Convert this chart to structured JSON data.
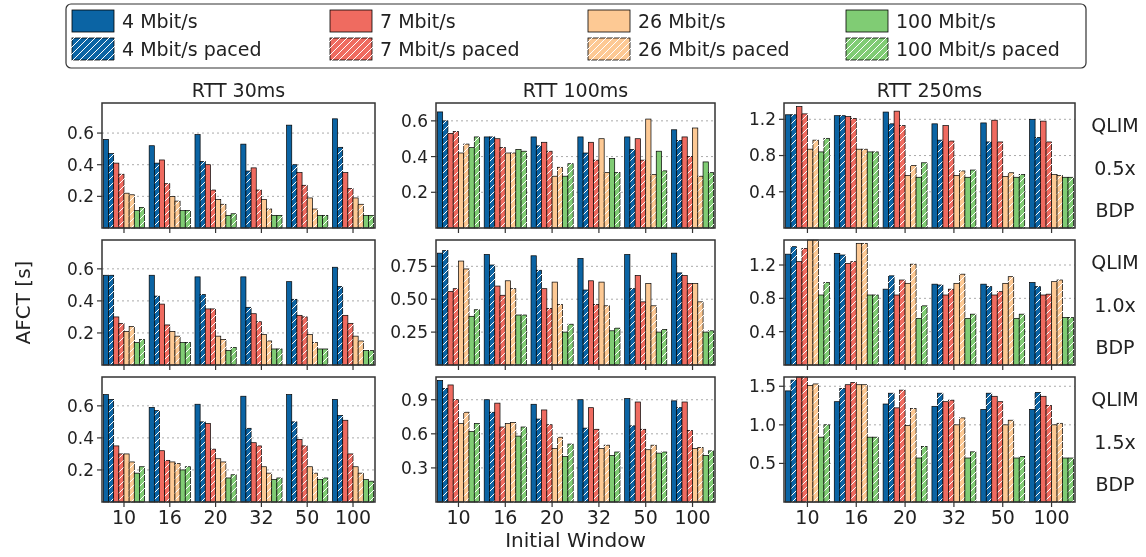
{
  "chart_data": [
    {
      "type": "bar",
      "title": "RTT 30ms",
      "legend": "top",
      "tick_labels": "y",
      "grid": "y",
      "categories": [
        "10",
        "16",
        "20",
        "32",
        "50",
        "100"
      ],
      "ylim": [
        0,
        0.79
      ],
      "yticks": [
        0.2,
        0.4,
        0.6
      ],
      "series": [
        {
          "name": "4 Mbit/s",
          "color": "#0b64a4",
          "values": [
            0.56,
            0.52,
            0.59,
            0.53,
            0.65,
            0.69
          ]
        },
        {
          "name": "4 Mbit/s paced",
          "color": "#0b64a4",
          "values": [
            0.47,
            0.41,
            0.42,
            0.36,
            0.4,
            0.51
          ]
        },
        {
          "name": "7 Mbit/s",
          "color": "#ef6b60",
          "values": [
            0.41,
            0.43,
            0.4,
            0.38,
            0.35,
            0.35
          ]
        },
        {
          "name": "7 Mbit/s paced",
          "color": "#ef6b60",
          "values": [
            0.34,
            0.28,
            0.24,
            0.24,
            0.27,
            0.25
          ]
        },
        {
          "name": "26 Mbit/s",
          "color": "#fdc994",
          "values": [
            0.22,
            0.2,
            0.18,
            0.18,
            0.19,
            0.19
          ]
        },
        {
          "name": "26 Mbit/s paced",
          "color": "#fdc994",
          "values": [
            0.21,
            0.17,
            0.15,
            0.12,
            0.12,
            0.15
          ]
        },
        {
          "name": "100 Mbit/s",
          "color": "#80cc74",
          "values": [
            0.11,
            0.11,
            0.08,
            0.08,
            0.08,
            0.08
          ]
        },
        {
          "name": "100 Mbit/s paced",
          "color": "#80cc74",
          "values": [
            0.13,
            0.11,
            0.09,
            0.08,
            0.08,
            0.08
          ]
        }
      ]
    },
    {
      "type": "bar",
      "title": "RTT 100ms",
      "tick_labels": "y",
      "grid": "y",
      "categories": [
        "10",
        "16",
        "20",
        "32",
        "50",
        "100"
      ],
      "ylim": [
        0,
        0.7
      ],
      "yticks": [
        0.2,
        0.4,
        0.6
      ],
      "series": [
        {
          "name": "4 Mbit/s",
          "color": "#0b64a4",
          "values": [
            0.65,
            0.51,
            0.51,
            0.51,
            0.51,
            0.55
          ]
        },
        {
          "name": "4 Mbit/s paced",
          "color": "#0b64a4",
          "values": [
            0.6,
            0.51,
            0.46,
            0.42,
            0.44,
            0.49
          ]
        },
        {
          "name": "7 Mbit/s",
          "color": "#ef6b60",
          "values": [
            0.53,
            0.5,
            0.48,
            0.48,
            0.5,
            0.51
          ]
        },
        {
          "name": "7 Mbit/s paced",
          "color": "#ef6b60",
          "values": [
            0.54,
            0.45,
            0.43,
            0.38,
            0.38,
            0.4
          ]
        },
        {
          "name": "26 Mbit/s",
          "color": "#fdc994",
          "values": [
            0.42,
            0.42,
            0.29,
            0.5,
            0.61,
            0.56
          ]
        },
        {
          "name": "26 Mbit/s paced",
          "color": "#fdc994",
          "values": [
            0.47,
            0.42,
            0.34,
            0.31,
            0.3,
            0.29
          ]
        },
        {
          "name": "100 Mbit/s",
          "color": "#80cc74",
          "values": [
            0.45,
            0.44,
            0.29,
            0.39,
            0.43,
            0.37
          ]
        },
        {
          "name": "100 Mbit/s paced",
          "color": "#80cc74",
          "values": [
            0.51,
            0.43,
            0.36,
            0.31,
            0.32,
            0.31
          ]
        }
      ]
    },
    {
      "type": "bar",
      "title": "RTT 250ms",
      "tick_labels": "y",
      "grid": "y",
      "annotations": [
        "QLIM",
        "0.5x",
        "BDP"
      ],
      "categories": [
        "10",
        "16",
        "20",
        "32",
        "50",
        "100"
      ],
      "ylim": [
        0,
        1.38
      ],
      "yticks": [
        0.4,
        0.8,
        1.2
      ],
      "series": [
        {
          "name": "4 Mbit/s",
          "color": "#0b64a4",
          "values": [
            1.25,
            1.24,
            1.28,
            1.15,
            1.16,
            1.2
          ]
        },
        {
          "name": "4 Mbit/s paced",
          "color": "#0b64a4",
          "values": [
            1.25,
            1.24,
            1.15,
            0.97,
            0.95,
            1.0
          ]
        },
        {
          "name": "7 Mbit/s",
          "color": "#ef6b60",
          "values": [
            1.34,
            1.23,
            1.29,
            1.13,
            1.19,
            1.18
          ]
        },
        {
          "name": "7 Mbit/s paced",
          "color": "#ef6b60",
          "values": [
            1.26,
            1.21,
            1.13,
            0.96,
            0.95,
            0.95
          ]
        },
        {
          "name": "26 Mbit/s",
          "color": "#fdc994",
          "values": [
            0.87,
            0.87,
            0.58,
            0.58,
            0.57,
            0.59
          ]
        },
        {
          "name": "26 Mbit/s paced",
          "color": "#fdc994",
          "values": [
            0.97,
            0.87,
            0.69,
            0.63,
            0.61,
            0.58
          ]
        },
        {
          "name": "100 Mbit/s",
          "color": "#80cc74",
          "values": [
            0.84,
            0.84,
            0.56,
            0.56,
            0.56,
            0.56
          ]
        },
        {
          "name": "100 Mbit/s paced",
          "color": "#80cc74",
          "values": [
            0.99,
            0.84,
            0.72,
            0.64,
            0.59,
            0.56
          ]
        }
      ]
    },
    {
      "type": "bar",
      "ylabel": "AFCT [s]",
      "tick_labels": "y",
      "grid": "y",
      "categories": [
        "10",
        "16",
        "20",
        "32",
        "50",
        "100"
      ],
      "ylim": [
        0,
        0.78
      ],
      "yticks": [
        0.2,
        0.4,
        0.6
      ],
      "series": [
        {
          "name": "4 Mbit/s",
          "color": "#0b64a4",
          "values": [
            0.56,
            0.56,
            0.55,
            0.55,
            0.52,
            0.61
          ]
        },
        {
          "name": "4 Mbit/s paced",
          "color": "#0b64a4",
          "values": [
            0.56,
            0.43,
            0.44,
            0.36,
            0.41,
            0.49
          ]
        },
        {
          "name": "7 Mbit/s",
          "color": "#ef6b60",
          "values": [
            0.3,
            0.38,
            0.35,
            0.32,
            0.31,
            0.31
          ]
        },
        {
          "name": "7 Mbit/s paced",
          "color": "#ef6b60",
          "values": [
            0.26,
            0.25,
            0.35,
            0.27,
            0.3,
            0.26
          ]
        },
        {
          "name": "26 Mbit/s",
          "color": "#fdc994",
          "values": [
            0.21,
            0.21,
            0.18,
            0.19,
            0.19,
            0.18
          ]
        },
        {
          "name": "26 Mbit/s paced",
          "color": "#fdc994",
          "values": [
            0.24,
            0.18,
            0.16,
            0.15,
            0.14,
            0.15
          ]
        },
        {
          "name": "100 Mbit/s",
          "color": "#80cc74",
          "values": [
            0.14,
            0.14,
            0.09,
            0.1,
            0.1,
            0.09
          ]
        },
        {
          "name": "100 Mbit/s paced",
          "color": "#80cc74",
          "values": [
            0.16,
            0.14,
            0.11,
            0.1,
            0.1,
            0.09
          ]
        }
      ]
    },
    {
      "type": "bar",
      "tick_labels": "y",
      "grid": "y",
      "categories": [
        "10",
        "16",
        "20",
        "32",
        "50",
        "100"
      ],
      "ylim": [
        0,
        0.95
      ],
      "yticks": [
        0.25,
        {
          "value": 0.5,
          "label": "0.50"
        },
        0.75
      ],
      "series": [
        {
          "name": "4 Mbit/s",
          "color": "#0b64a4",
          "values": [
            0.85,
            0.84,
            0.83,
            0.81,
            0.84,
            0.85
          ]
        },
        {
          "name": "4 Mbit/s paced",
          "color": "#0b64a4",
          "values": [
            0.87,
            0.76,
            0.72,
            0.57,
            0.58,
            0.7
          ]
        },
        {
          "name": "7 Mbit/s",
          "color": "#ef6b60",
          "values": [
            0.56,
            0.6,
            0.58,
            0.64,
            0.68,
            0.68
          ]
        },
        {
          "name": "7 Mbit/s paced",
          "color": "#ef6b60",
          "values": [
            0.58,
            0.53,
            0.43,
            0.46,
            0.48,
            0.62
          ]
        },
        {
          "name": "26 Mbit/s",
          "color": "#fdc994",
          "values": [
            0.79,
            0.64,
            0.63,
            0.63,
            0.62,
            0.62
          ]
        },
        {
          "name": "26 Mbit/s paced",
          "color": "#fdc994",
          "values": [
            0.73,
            0.58,
            0.46,
            0.45,
            0.45,
            0.48
          ]
        },
        {
          "name": "100 Mbit/s",
          "color": "#80cc74",
          "values": [
            0.37,
            0.38,
            0.25,
            0.26,
            0.25,
            0.25
          ]
        },
        {
          "name": "100 Mbit/s paced",
          "color": "#80cc74",
          "values": [
            0.42,
            0.38,
            0.31,
            0.28,
            0.27,
            0.26
          ]
        }
      ]
    },
    {
      "type": "bar",
      "tick_labels": "y",
      "grid": "y",
      "annotations": [
        "QLIM",
        "1.0x",
        "BDP"
      ],
      "categories": [
        "10",
        "16",
        "20",
        "32",
        "50",
        "100"
      ],
      "ylim": [
        0,
        1.5
      ],
      "yticks": [
        0.4,
        0.8,
        1.2
      ],
      "series": [
        {
          "name": "4 Mbit/s",
          "color": "#0b64a4",
          "values": [
            1.33,
            1.34,
            0.91,
            0.97,
            0.97,
            0.99
          ]
        },
        {
          "name": "4 Mbit/s paced",
          "color": "#0b64a4",
          "values": [
            1.42,
            1.32,
            1.07,
            0.96,
            0.94,
            0.94
          ]
        },
        {
          "name": "7 Mbit/s",
          "color": "#ef6b60",
          "values": [
            1.24,
            1.22,
            0.84,
            0.84,
            0.84,
            0.84
          ]
        },
        {
          "name": "7 Mbit/s paced",
          "color": "#ef6b60",
          "values": [
            1.4,
            1.24,
            1.02,
            0.91,
            0.88,
            0.85
          ]
        },
        {
          "name": "26 Mbit/s",
          "color": "#fdc994",
          "values": [
            1.5,
            1.46,
            0.98,
            0.98,
            0.98,
            1.0
          ]
        },
        {
          "name": "26 Mbit/s paced",
          "color": "#fdc994",
          "values": [
            1.5,
            1.46,
            1.21,
            1.09,
            1.06,
            1.02
          ]
        },
        {
          "name": "100 Mbit/s",
          "color": "#80cc74",
          "values": [
            0.84,
            0.84,
            0.56,
            0.56,
            0.56,
            0.57
          ]
        },
        {
          "name": "100 Mbit/s paced",
          "color": "#80cc74",
          "values": [
            0.99,
            0.84,
            0.71,
            0.61,
            0.61,
            0.57
          ]
        }
      ]
    },
    {
      "type": "bar",
      "grid": "y",
      "categories": [
        "10",
        "16",
        "20",
        "32",
        "50",
        "100"
      ],
      "ylim": [
        0,
        0.78
      ],
      "yticks": [
        0.2,
        0.4,
        0.6
      ],
      "series": [
        {
          "name": "4 Mbit/s",
          "color": "#0b64a4",
          "values": [
            0.67,
            0.59,
            0.61,
            0.66,
            0.67,
            0.64
          ]
        },
        {
          "name": "4 Mbit/s paced",
          "color": "#0b64a4",
          "values": [
            0.64,
            0.57,
            0.5,
            0.46,
            0.5,
            0.54
          ]
        },
        {
          "name": "7 Mbit/s",
          "color": "#ef6b60",
          "values": [
            0.35,
            0.32,
            0.49,
            0.37,
            0.39,
            0.51
          ]
        },
        {
          "name": "7 Mbit/s paced",
          "color": "#ef6b60",
          "values": [
            0.3,
            0.26,
            0.33,
            0.35,
            0.35,
            0.3
          ]
        },
        {
          "name": "26 Mbit/s",
          "color": "#fdc994",
          "values": [
            0.3,
            0.25,
            0.27,
            0.22,
            0.22,
            0.22
          ]
        },
        {
          "name": "26 Mbit/s paced",
          "color": "#fdc994",
          "values": [
            0.25,
            0.24,
            0.25,
            0.18,
            0.18,
            0.18
          ]
        },
        {
          "name": "100 Mbit/s",
          "color": "#80cc74",
          "values": [
            0.18,
            0.2,
            0.15,
            0.14,
            0.14,
            0.14
          ]
        },
        {
          "name": "100 Mbit/s paced",
          "color": "#80cc74",
          "values": [
            0.22,
            0.22,
            0.17,
            0.15,
            0.15,
            0.13
          ]
        }
      ]
    },
    {
      "type": "bar",
      "xlabel": "Initial Window",
      "grid": "y",
      "categories": [
        "10",
        "16",
        "20",
        "32",
        "50",
        "100"
      ],
      "ylim": [
        0,
        1.1
      ],
      "yticks": [
        0.3,
        0.6,
        0.9
      ],
      "series": [
        {
          "name": "4 Mbit/s",
          "color": "#0b64a4",
          "values": [
            1.07,
            0.9,
            0.86,
            0.9,
            0.91,
            0.89
          ]
        },
        {
          "name": "4 Mbit/s paced",
          "color": "#0b64a4",
          "values": [
            1.0,
            0.79,
            0.73,
            0.65,
            0.67,
            0.83
          ]
        },
        {
          "name": "7 Mbit/s",
          "color": "#ef6b60",
          "values": [
            1.03,
            0.87,
            0.81,
            0.83,
            0.88,
            0.88
          ]
        },
        {
          "name": "7 Mbit/s paced",
          "color": "#ef6b60",
          "values": [
            0.9,
            0.66,
            0.68,
            0.64,
            0.64,
            0.63
          ]
        },
        {
          "name": "26 Mbit/s",
          "color": "#fdc994",
          "values": [
            0.69,
            0.69,
            0.47,
            0.47,
            0.46,
            0.47
          ]
        },
        {
          "name": "26 Mbit/s paced",
          "color": "#fdc994",
          "values": [
            0.79,
            0.7,
            0.57,
            0.5,
            0.5,
            0.48
          ]
        },
        {
          "name": "100 Mbit/s",
          "color": "#80cc74",
          "values": [
            0.62,
            0.58,
            0.4,
            0.41,
            0.43,
            0.41
          ]
        },
        {
          "name": "100 Mbit/s paced",
          "color": "#80cc74",
          "values": [
            0.69,
            0.66,
            0.51,
            0.44,
            0.44,
            0.45
          ]
        }
      ]
    },
    {
      "type": "bar",
      "grid": "y",
      "annotations": [
        "QLIM",
        "1.5x",
        "BDP"
      ],
      "categories": [
        "10",
        "16",
        "20",
        "32",
        "50",
        "100"
      ],
      "ylim": [
        0,
        1.62
      ],
      "yticks": [
        0.5,
        {
          "value": 1.0,
          "label": "1.0"
        },
        1.5
      ],
      "series": [
        {
          "name": "4 Mbit/s",
          "color": "#0b64a4",
          "values": [
            1.44,
            1.3,
            1.27,
            1.24,
            1.2,
            1.2
          ]
        },
        {
          "name": "4 Mbit/s paced",
          "color": "#0b64a4",
          "values": [
            1.58,
            1.47,
            1.41,
            1.41,
            1.41,
            1.42
          ]
        },
        {
          "name": "7 Mbit/s",
          "color": "#ef6b60",
          "values": [
            1.62,
            1.52,
            1.22,
            1.3,
            1.37,
            1.37
          ]
        },
        {
          "name": "7 Mbit/s paced",
          "color": "#ef6b60",
          "values": [
            1.62,
            1.55,
            1.45,
            1.32,
            1.3,
            1.25
          ]
        },
        {
          "name": "26 Mbit/s",
          "color": "#fdc994",
          "values": [
            1.51,
            1.52,
            0.99,
            1.0,
            1.0,
            1.0
          ]
        },
        {
          "name": "26 Mbit/s paced",
          "color": "#fdc994",
          "values": [
            1.53,
            1.52,
            1.21,
            1.09,
            1.06,
            1.02
          ]
        },
        {
          "name": "100 Mbit/s",
          "color": "#80cc74",
          "values": [
            0.84,
            0.84,
            0.57,
            0.57,
            0.57,
            0.57
          ]
        },
        {
          "name": "100 Mbit/s paced",
          "color": "#80cc74",
          "values": [
            1.0,
            0.84,
            0.72,
            0.65,
            0.59,
            0.57
          ]
        }
      ]
    }
  ]
}
